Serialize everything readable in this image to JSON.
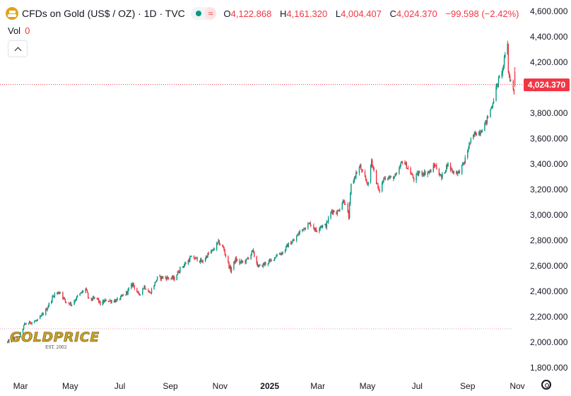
{
  "header": {
    "title": "CFDs on Gold (US$ / OZ) · 1D · TVC",
    "wave_glyph": "≈",
    "ohlc": [
      {
        "key": "O",
        "value": "4,122.868"
      },
      {
        "key": "H",
        "value": "4,161.320"
      },
      {
        "key": "L",
        "value": "4,004.407"
      },
      {
        "key": "C",
        "value": "4,024.370"
      }
    ],
    "change": "−99.598 (−2.42%)"
  },
  "volume": {
    "label": "Vol",
    "value": "0"
  },
  "logo": {
    "text": "GOLDPRICE",
    "sub": "EST. 2002"
  },
  "last_price": "4,024.370",
  "colors": {
    "up": "#089981",
    "down": "#f23645",
    "grid": "#f0f3fa",
    "text": "#131722"
  },
  "icons": [
    "gold-symbol-icon",
    "status-dot-icon",
    "chevron-up-icon",
    "gear-icon"
  ],
  "chart_data": {
    "type": "candlestick",
    "title": "CFDs on Gold (US$ / OZ)",
    "interval": "1D",
    "source": "TVC",
    "ylim": [
      1750,
      4650
    ],
    "y_ticks": [
      1800,
      2000,
      2200,
      2400,
      2600,
      2800,
      3000,
      3200,
      3400,
      3600,
      3800,
      4000,
      4200,
      4400,
      4600
    ],
    "y_tick_labels": [
      "1,800.000",
      "2,000.000",
      "2,200.000",
      "2,400.000",
      "2,600.000",
      "2,800.000",
      "3,000.000",
      "3,200.000",
      "3,400.000",
      "3,600.000",
      "3,800.000",
      "4,000.000",
      "4,200.000",
      "4,400.000",
      "4,600.000"
    ],
    "x_range": [
      "2024-02-13",
      "2025-11-05"
    ],
    "x_ticks": [
      {
        "date": "2024-03-01",
        "label": "Mar",
        "bold": false
      },
      {
        "date": "2024-05-01",
        "label": "May",
        "bold": false
      },
      {
        "date": "2024-07-01",
        "label": "Jul",
        "bold": false
      },
      {
        "date": "2024-09-01",
        "label": "Sep",
        "bold": false
      },
      {
        "date": "2024-11-01",
        "label": "Nov",
        "bold": false
      },
      {
        "date": "2025-01-01",
        "label": "2025",
        "bold": true
      },
      {
        "date": "2025-03-01",
        "label": "Mar",
        "bold": false
      },
      {
        "date": "2025-05-01",
        "label": "May",
        "bold": false
      },
      {
        "date": "2025-07-01",
        "label": "Jul",
        "bold": false
      },
      {
        "date": "2025-09-01",
        "label": "Sep",
        "bold": false
      },
      {
        "date": "2025-11-01",
        "label": "Nov",
        "bold": false
      }
    ],
    "last_close": 4024.37,
    "reference_line": 2106,
    "close_path": [
      [
        "2024-02-14",
        2000
      ],
      [
        "2024-02-20",
        2025
      ],
      [
        "2024-02-28",
        2035
      ],
      [
        "2024-03-06",
        2140
      ],
      [
        "2024-03-15",
        2160
      ],
      [
        "2024-03-22",
        2170
      ],
      [
        "2024-04-01",
        2250
      ],
      [
        "2024-04-09",
        2350
      ],
      [
        "2024-04-12",
        2380
      ],
      [
        "2024-04-19",
        2395
      ],
      [
        "2024-04-25",
        2320
      ],
      [
        "2024-05-03",
        2300
      ],
      [
        "2024-05-10",
        2360
      ],
      [
        "2024-05-20",
        2420
      ],
      [
        "2024-05-24",
        2335
      ],
      [
        "2024-06-03",
        2345
      ],
      [
        "2024-06-07",
        2300
      ],
      [
        "2024-06-14",
        2330
      ],
      [
        "2024-06-21",
        2325
      ],
      [
        "2024-06-28",
        2330
      ],
      [
        "2024-07-08",
        2380
      ],
      [
        "2024-07-17",
        2460
      ],
      [
        "2024-07-24",
        2370
      ],
      [
        "2024-07-31",
        2440
      ],
      [
        "2024-08-07",
        2385
      ],
      [
        "2024-08-16",
        2505
      ],
      [
        "2024-08-23",
        2510
      ],
      [
        "2024-08-30",
        2505
      ],
      [
        "2024-09-06",
        2500
      ],
      [
        "2024-09-13",
        2580
      ],
      [
        "2024-09-20",
        2620
      ],
      [
        "2024-09-26",
        2665
      ],
      [
        "2024-10-04",
        2655
      ],
      [
        "2024-10-10",
        2630
      ],
      [
        "2024-10-17",
        2690
      ],
      [
        "2024-10-23",
        2720
      ],
      [
        "2024-10-30",
        2785
      ],
      [
        "2024-11-05",
        2740
      ],
      [
        "2024-11-12",
        2600
      ],
      [
        "2024-11-14",
        2565
      ],
      [
        "2024-11-20",
        2650
      ],
      [
        "2024-11-25",
        2625
      ],
      [
        "2024-12-03",
        2640
      ],
      [
        "2024-12-11",
        2715
      ],
      [
        "2024-12-18",
        2590
      ],
      [
        "2024-12-27",
        2620
      ],
      [
        "2025-01-03",
        2640
      ],
      [
        "2025-01-10",
        2690
      ],
      [
        "2025-01-17",
        2705
      ],
      [
        "2025-01-24",
        2770
      ],
      [
        "2025-01-31",
        2800
      ],
      [
        "2025-02-06",
        2860
      ],
      [
        "2025-02-11",
        2895
      ],
      [
        "2025-02-20",
        2935
      ],
      [
        "2025-02-27",
        2875
      ],
      [
        "2025-03-04",
        2915
      ],
      [
        "2025-03-11",
        2915
      ],
      [
        "2025-03-18",
        3035
      ],
      [
        "2025-03-25",
        3020
      ],
      [
        "2025-04-02",
        3120
      ],
      [
        "2025-04-08",
        2985
      ],
      [
        "2025-04-11",
        3235
      ],
      [
        "2025-04-17",
        3325
      ],
      [
        "2025-04-22",
        3380
      ],
      [
        "2025-04-25",
        3320
      ],
      [
        "2025-05-02",
        3240
      ],
      [
        "2025-05-06",
        3430
      ],
      [
        "2025-05-15",
        3180
      ],
      [
        "2025-05-22",
        3300
      ],
      [
        "2025-05-30",
        3290
      ],
      [
        "2025-06-06",
        3310
      ],
      [
        "2025-06-13",
        3430
      ],
      [
        "2025-06-20",
        3365
      ],
      [
        "2025-06-27",
        3280
      ],
      [
        "2025-07-03",
        3330
      ],
      [
        "2025-07-10",
        3330
      ],
      [
        "2025-07-17",
        3340
      ],
      [
        "2025-07-23",
        3395
      ],
      [
        "2025-07-31",
        3290
      ],
      [
        "2025-08-07",
        3400
      ],
      [
        "2025-08-14",
        3340
      ],
      [
        "2025-08-21",
        3335
      ],
      [
        "2025-08-28",
        3415
      ],
      [
        "2025-09-03",
        3555
      ],
      [
        "2025-09-10",
        3640
      ],
      [
        "2025-09-17",
        3660
      ],
      [
        "2025-09-24",
        3735
      ],
      [
        "2025-10-01",
        3865
      ],
      [
        "2025-10-08",
        4040
      ],
      [
        "2025-10-14",
        4145
      ],
      [
        "2025-10-17",
        4250
      ],
      [
        "2025-10-20",
        4355
      ],
      [
        "2025-10-21",
        4120
      ],
      [
        "2025-10-22",
        4095
      ],
      [
        "2025-10-28",
        3960
      ],
      [
        "2025-10-29",
        4024
      ]
    ]
  }
}
